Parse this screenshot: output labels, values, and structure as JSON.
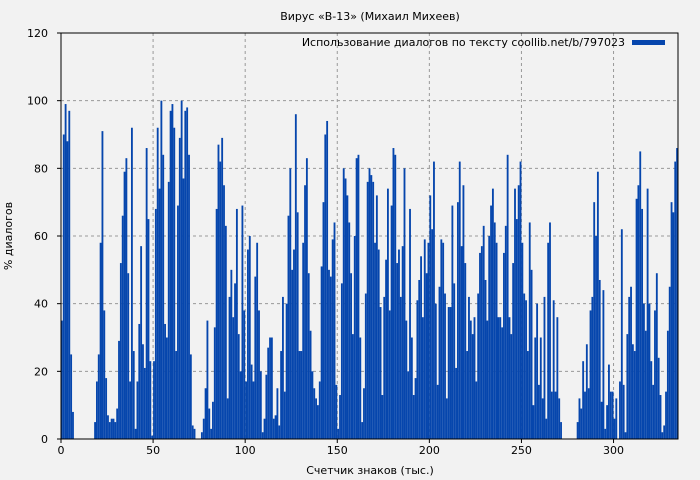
{
  "chart_data": {
    "type": "bar",
    "title": "Вирус «В-13» (Михаил Михеев)",
    "xlabel": "Счетчик знаков (тыс.)",
    "ylabel": "% диалогов",
    "xlim": [
      0,
      335
    ],
    "ylim": [
      0,
      120
    ],
    "xticks": [
      0,
      50,
      100,
      150,
      200,
      250,
      300
    ],
    "yticks": [
      0,
      20,
      40,
      60,
      80,
      100,
      120
    ],
    "grid": true,
    "legend": {
      "placement": "top-right",
      "entries": [
        "Использование диалогов по тексту coollib.net/b/797023"
      ]
    },
    "series": [
      {
        "name": "Использование диалогов по тексту coollib.net/b/797023",
        "color": "#0646ad",
        "x_step": 1,
        "values": [
          35,
          90,
          99,
          88,
          97,
          25,
          8,
          0,
          0,
          0,
          0,
          0,
          0,
          0,
          0,
          0,
          0,
          0,
          5,
          17,
          25,
          58,
          91,
          38,
          18,
          7,
          5,
          6,
          6,
          5,
          9,
          29,
          52,
          66,
          79,
          83,
          49,
          17,
          92,
          26,
          3,
          17,
          34,
          57,
          28,
          21,
          86,
          65,
          23,
          1,
          23,
          68,
          92,
          74,
          100,
          84,
          34,
          30,
          76,
          97,
          99,
          92,
          26,
          69,
          89,
          100,
          77,
          97,
          98,
          84,
          25,
          4,
          3,
          0,
          0,
          0,
          2,
          6,
          15,
          35,
          9,
          3,
          11,
          33,
          68,
          87,
          82,
          89,
          75,
          63,
          12,
          42,
          50,
          36,
          46,
          68,
          31,
          20,
          69,
          38,
          17,
          56,
          60,
          22,
          17,
          48,
          58,
          38,
          20,
          2,
          6,
          19,
          27,
          30,
          30,
          6,
          7,
          15,
          4,
          26,
          42,
          14,
          40,
          66,
          80,
          50,
          56,
          96,
          67,
          26,
          26,
          58,
          75,
          83,
          49,
          32,
          20,
          15,
          12,
          10,
          17,
          51,
          70,
          90,
          94,
          50,
          48,
          59,
          64,
          16,
          3,
          13,
          46,
          80,
          77,
          72,
          64,
          49,
          31,
          60,
          83,
          84,
          30,
          5,
          15,
          43,
          76,
          80,
          78,
          76,
          58,
          72,
          56,
          39,
          13,
          42,
          53,
          74,
          38,
          69,
          86,
          84,
          52,
          56,
          42,
          57,
          80,
          35,
          20,
          68,
          30,
          13,
          18,
          41,
          47,
          54,
          36,
          59,
          49,
          58,
          72,
          62,
          82,
          40,
          16,
          45,
          59,
          58,
          43,
          12,
          39,
          39,
          69,
          46,
          21,
          70,
          82,
          57,
          75,
          52,
          26,
          42,
          35,
          31,
          36,
          17,
          43,
          55,
          57,
          63,
          47,
          35,
          60,
          69,
          74,
          64,
          58,
          36,
          36,
          33,
          55,
          63,
          84,
          36,
          31,
          52,
          74,
          65,
          75,
          82,
          58,
          43,
          41,
          26,
          64,
          50,
          10,
          30,
          40,
          16,
          30,
          12,
          42,
          6,
          58,
          64,
          14,
          41,
          14,
          36,
          12,
          5,
          0,
          0,
          0,
          0,
          0,
          0,
          0,
          0,
          5,
          12,
          9,
          23,
          14,
          28,
          15,
          38,
          42,
          70,
          60,
          79,
          47,
          11,
          44,
          3,
          10,
          22,
          14,
          14,
          6,
          12,
          0,
          17,
          62,
          16,
          2,
          31,
          42,
          45,
          28,
          26,
          71,
          75,
          85,
          68,
          40,
          32,
          74,
          40,
          23,
          16,
          38,
          49,
          24,
          13,
          2,
          4,
          14,
          32,
          45,
          70,
          67,
          82,
          86,
          0
        ]
      }
    ]
  }
}
